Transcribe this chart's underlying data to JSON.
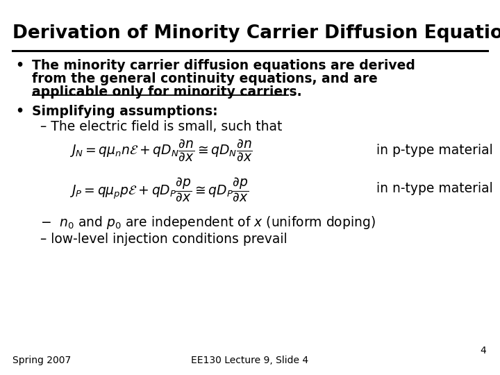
{
  "title": "Derivation of Minority Carrier Diffusion Equation",
  "background_color": "#FFFFFF",
  "title_color": "#000000",
  "title_fontsize": 19,
  "line_color": "#000000",
  "bullet1_line1": "The minority carrier diffusion equations are derived",
  "bullet1_line2": "from the general continuity equations, and are",
  "bullet1_line3": "applicable only for minority carriers.",
  "bullet2": "Simplifying assumptions:",
  "sub1": "The electric field is small, such that",
  "eq1": "$J_N = q\\mu_n n\\mathcal{E} + qD_N \\dfrac{\\partial n}{\\partial x} \\cong qD_N \\dfrac{\\partial n}{\\partial x}$",
  "eq1_label": "in p-type material",
  "eq2": "$J_P = q\\mu_p p\\mathcal{E} + qD_P \\dfrac{\\partial p}{\\partial x} \\cong qD_P \\dfrac{\\partial p}{\\partial x}$",
  "eq2_label": "in n-type material",
  "sub2_n": "$n_0$",
  "sub2_p": "$p_0$",
  "sub2_x": "$x$",
  "sub2_rest": " are independent of ",
  "sub2_suffix": " (uniform doping)",
  "sub3": "low-level injection conditions prevail",
  "footer_left": "Spring 2007",
  "footer_center": "EE130 Lecture 9, Slide 4",
  "footer_slide": "4",
  "fs_body": 13.5,
  "fs_footer": 10,
  "fs_eq": 13.5
}
